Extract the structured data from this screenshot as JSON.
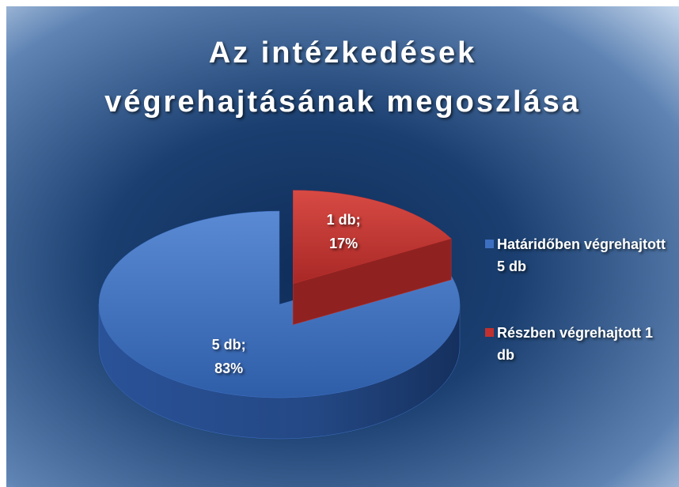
{
  "chart_data": {
    "type": "pie",
    "title": "Az intézkedések végrehajtásának megoszlása",
    "categories": [
      "Határidőben végrehajtott 5 db",
      "Részben végrehajtott 1 db"
    ],
    "values": [
      83,
      17
    ],
    "value_labels": [
      "5 db; 83%",
      "1 db; 17%"
    ],
    "colors": [
      "#3d6fc1",
      "#c0312f"
    ],
    "legend": "right"
  }
}
